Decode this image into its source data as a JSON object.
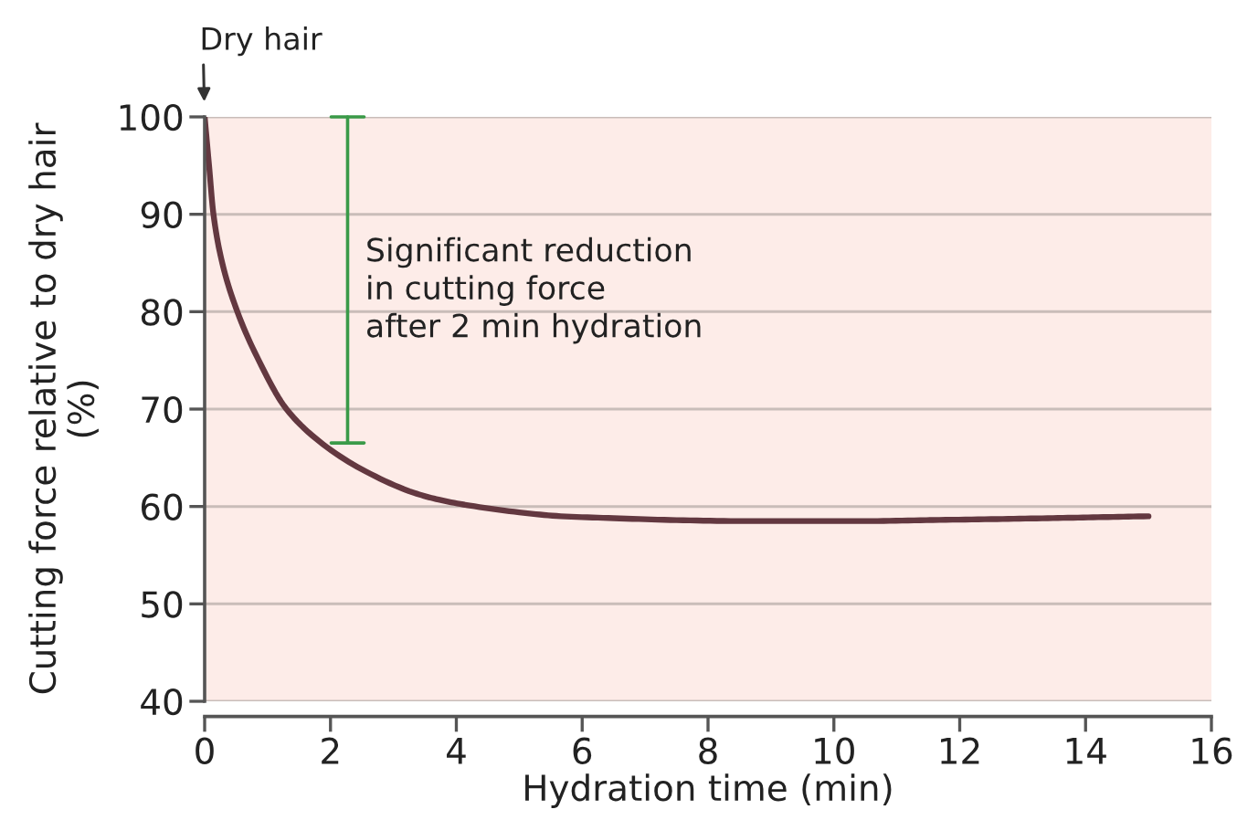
{
  "chart_data": {
    "type": "line",
    "xlabel": "Hydration time (min)",
    "ylabel": "Cutting force relative to dry hair\n(%)",
    "x": [
      0,
      0.07,
      0.14,
      0.28,
      0.52,
      0.86,
      1.3,
      1.88,
      2.56,
      3.33,
      3.72,
      4.21,
      5,
      5.66,
      6.5,
      7.5,
      8.57,
      9.5,
      10.5,
      11.47,
      12.5,
      13.4,
      14.2,
      15
    ],
    "series": [
      {
        "color": "#633840",
        "values": [
          100,
          95,
          90,
          85,
          80,
          75,
          70,
          66.4,
          63.6,
          61.4,
          60.7,
          60.1,
          59.4,
          59.0,
          58.8,
          58.6,
          58.5,
          58.5,
          58.5,
          58.6,
          58.7,
          58.8,
          58.9,
          59.0
        ]
      }
    ],
    "xlim": [
      0,
      16
    ],
    "xticks": [
      0,
      2,
      4,
      6,
      8,
      10,
      12,
      14,
      16
    ],
    "ylim": [
      40,
      100
    ],
    "yticks": [
      40,
      50,
      60,
      70,
      80,
      90,
      100
    ],
    "grid": "y",
    "line_style": "solid",
    "annotations": [
      {
        "text": "Dry hair",
        "x": 0,
        "y": 100
      },
      "Significant reduction\nin cutting force\nafter 2 min hydration"
    ]
  }
}
